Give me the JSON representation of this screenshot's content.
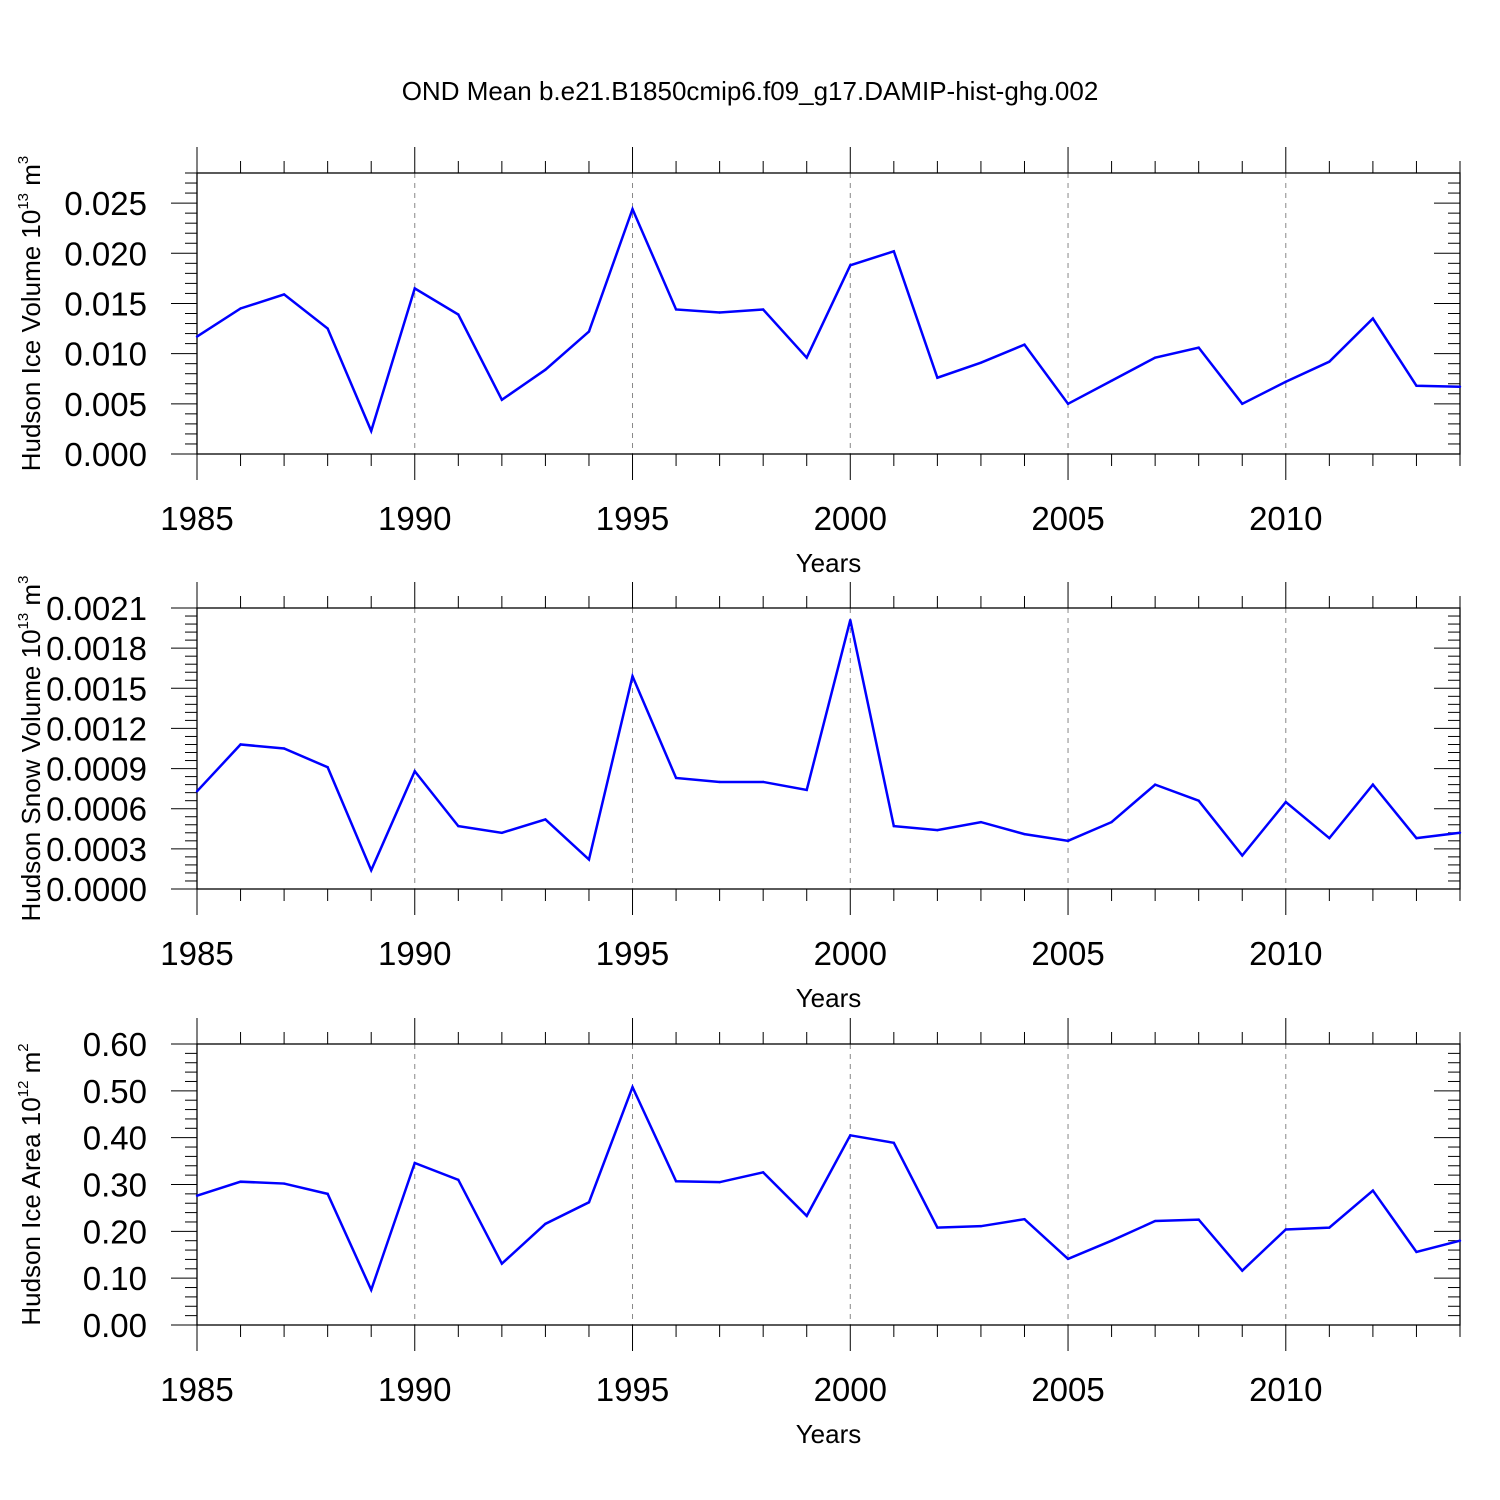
{
  "figure": {
    "title": "OND Mean b.e21.B1850cmip6.f09_g17.DAMIP-hist-ghg.002",
    "line_color": "#0000ff",
    "grid_color": "#888888"
  },
  "chart_data": [
    {
      "type": "line",
      "title": "",
      "xlabel": "Years",
      "ylabel": {
        "main": "Hudson Ice Volume 10",
        "sup": "13",
        "unit": " m",
        "unit_sup": "3"
      },
      "xlim": [
        1985,
        2014
      ],
      "ylim": [
        0.0,
        0.028
      ],
      "x_ticks": [
        1985,
        1990,
        1995,
        2000,
        2005,
        2010
      ],
      "x_tick_labels": [
        "1985",
        "1990",
        "1995",
        "2000",
        "2005",
        "2010"
      ],
      "y_ticks": [
        0.0,
        0.005,
        0.01,
        0.015,
        0.02,
        0.025
      ],
      "y_tick_labels": [
        "0.000",
        "0.005",
        "0.010",
        "0.015",
        "0.020",
        "0.025"
      ],
      "grid": "vertical dashed at major x ticks",
      "x": [
        1985,
        1986,
        1987,
        1988,
        1989,
        1990,
        1991,
        1992,
        1993,
        1994,
        1995,
        1996,
        1997,
        1998,
        1999,
        2000,
        2001,
        2002,
        2003,
        2004,
        2005,
        2006,
        2007,
        2008,
        2009,
        2010,
        2011,
        2012,
        2013,
        2014
      ],
      "series": [
        {
          "values": [
            0.0117,
            0.0145,
            0.0159,
            0.0125,
            0.0023,
            0.0165,
            0.0139,
            0.0054,
            0.0084,
            0.0122,
            0.0244,
            0.0144,
            0.0141,
            0.0144,
            0.0096,
            0.0188,
            0.0202,
            0.0076,
            0.0091,
            0.0109,
            0.005,
            0.0073,
            0.0096,
            0.0106,
            0.005,
            0.0072,
            0.0092,
            0.0135,
            0.0068,
            0.0067
          ]
        }
      ]
    },
    {
      "type": "line",
      "title": "",
      "xlabel": "Years",
      "ylabel": {
        "main": "Hudson Snow Volume 10",
        "sup": "13",
        "unit": " m",
        "unit_sup": "3"
      },
      "xlim": [
        1985,
        2014
      ],
      "ylim": [
        0.0,
        0.0021
      ],
      "x_ticks": [
        1985,
        1990,
        1995,
        2000,
        2005,
        2010
      ],
      "x_tick_labels": [
        "1985",
        "1990",
        "1995",
        "2000",
        "2005",
        "2010"
      ],
      "y_ticks": [
        0.0,
        0.0003,
        0.0006,
        0.0009,
        0.0012,
        0.0015,
        0.0018,
        0.0021
      ],
      "y_tick_labels": [
        "0.0000",
        "0.0003",
        "0.0006",
        "0.0009",
        "0.0012",
        "0.0015",
        "0.0018",
        "0.0021"
      ],
      "grid": "vertical dashed at major x ticks",
      "x": [
        1985,
        1986,
        1987,
        1988,
        1989,
        1990,
        1991,
        1992,
        1993,
        1994,
        1995,
        1996,
        1997,
        1998,
        1999,
        2000,
        2001,
        2002,
        2003,
        2004,
        2005,
        2006,
        2007,
        2008,
        2009,
        2010,
        2011,
        2012,
        2013,
        2014
      ],
      "series": [
        {
          "values": [
            0.00073,
            0.00108,
            0.00105,
            0.00091,
            0.00014,
            0.00088,
            0.00047,
            0.00042,
            0.00052,
            0.00022,
            0.00159,
            0.00083,
            0.0008,
            0.0008,
            0.00074,
            0.00201,
            0.00047,
            0.00044,
            0.0005,
            0.00041,
            0.00036,
            0.0005,
            0.00078,
            0.00066,
            0.00025,
            0.00065,
            0.00038,
            0.00078,
            0.00038,
            0.00042
          ]
        }
      ]
    },
    {
      "type": "line",
      "title": "",
      "xlabel": "Years",
      "ylabel": {
        "main": "Hudson Ice Area 10",
        "sup": "12",
        "unit": " m",
        "unit_sup": "2"
      },
      "xlim": [
        1985,
        2014
      ],
      "ylim": [
        0.0,
        0.6
      ],
      "x_ticks": [
        1985,
        1990,
        1995,
        2000,
        2005,
        2010
      ],
      "x_tick_labels": [
        "1985",
        "1990",
        "1995",
        "2000",
        "2005",
        "2010"
      ],
      "y_ticks": [
        0.0,
        0.1,
        0.2,
        0.3,
        0.4,
        0.5,
        0.6
      ],
      "y_tick_labels": [
        "0.00",
        "0.10",
        "0.20",
        "0.30",
        "0.40",
        "0.50",
        "0.60"
      ],
      "grid": "vertical dashed at major x ticks",
      "x": [
        1985,
        1986,
        1987,
        1988,
        1989,
        1990,
        1991,
        1992,
        1993,
        1994,
        1995,
        1996,
        1997,
        1998,
        1999,
        2000,
        2001,
        2002,
        2003,
        2004,
        2005,
        2006,
        2007,
        2008,
        2009,
        2010,
        2011,
        2012,
        2013,
        2014
      ],
      "series": [
        {
          "values": [
            0.276,
            0.306,
            0.302,
            0.28,
            0.075,
            0.346,
            0.31,
            0.131,
            0.216,
            0.262,
            0.508,
            0.307,
            0.305,
            0.326,
            0.233,
            0.405,
            0.389,
            0.208,
            0.211,
            0.226,
            0.141,
            0.18,
            0.222,
            0.225,
            0.116,
            0.204,
            0.208,
            0.287,
            0.156,
            0.18
          ]
        }
      ]
    }
  ]
}
